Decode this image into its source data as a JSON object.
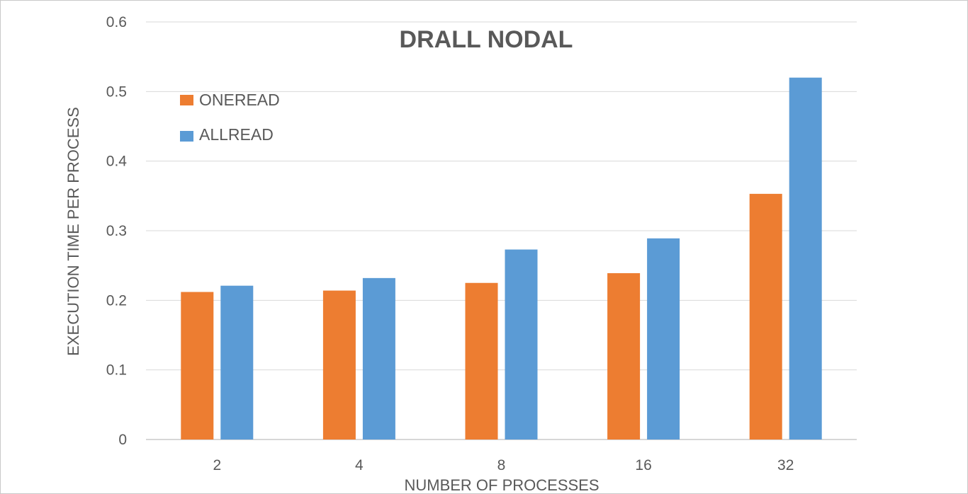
{
  "chart_data": {
    "type": "bar",
    "title": "DRALL NODAL",
    "xlabel": "NUMBER  OF PROCESSES",
    "ylabel": "EXECUTION  TIME PER PROCESS",
    "categories": [
      "2",
      "4",
      "8",
      "16",
      "32"
    ],
    "series": [
      {
        "name": "ONEREAD",
        "color": "#ED7D31",
        "values": [
          0.212,
          0.214,
          0.225,
          0.239,
          0.353
        ]
      },
      {
        "name": "ALLREAD",
        "color": "#5B9BD5",
        "values": [
          0.221,
          0.232,
          0.273,
          0.289,
          0.52
        ]
      }
    ],
    "ylim": [
      0,
      0.6
    ],
    "yticks": [
      "0",
      "0.1",
      "0.2",
      "0.3",
      "0.4",
      "0.5",
      "0.6"
    ],
    "grid": true,
    "legend_position": "top-left"
  }
}
